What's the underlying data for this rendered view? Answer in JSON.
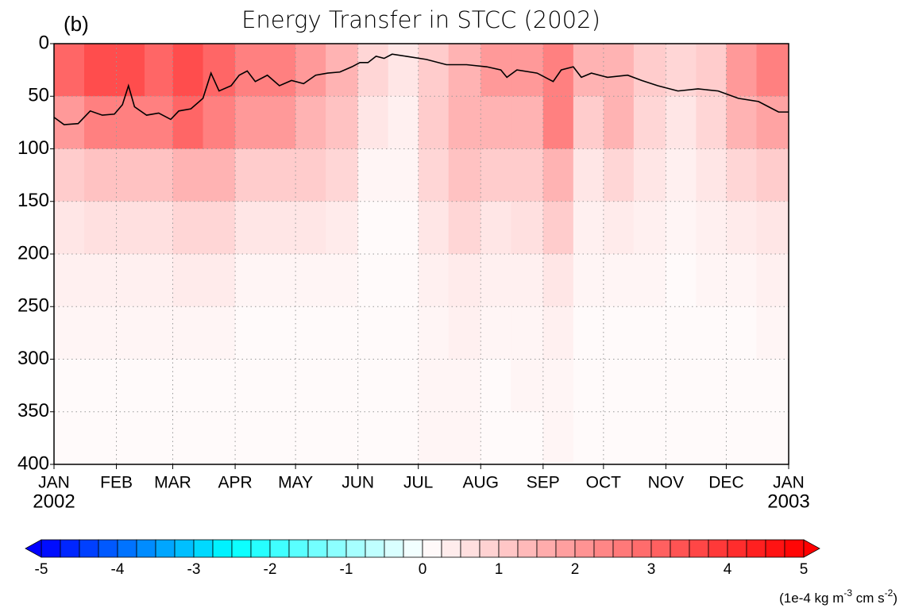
{
  "chart_data": {
    "type": "heatmap",
    "title": "Energy Transfer in STCC (2002)",
    "panel_label": "(b)",
    "xlim": [
      0,
      365
    ],
    "xticks": [
      {
        "value": 0,
        "label": "JAN"
      },
      {
        "value": 31,
        "label": "FEB"
      },
      {
        "value": 59,
        "label": "MAR"
      },
      {
        "value": 90,
        "label": "APR"
      },
      {
        "value": 120,
        "label": "MAY"
      },
      {
        "value": 151,
        "label": "JUN"
      },
      {
        "value": 181,
        "label": "JUL"
      },
      {
        "value": 212,
        "label": "AUG"
      },
      {
        "value": 243,
        "label": "SEP"
      },
      {
        "value": 273,
        "label": "OCT"
      },
      {
        "value": 304,
        "label": "NOV"
      },
      {
        "value": 334,
        "label": "DEC"
      },
      {
        "value": 365,
        "label": "JAN"
      }
    ],
    "year_labels": [
      {
        "value": 0,
        "label": "2002"
      },
      {
        "value": 365,
        "label": "2003"
      }
    ],
    "ylim": [
      0,
      400
    ],
    "yticks": [
      0,
      50,
      100,
      150,
      200,
      250,
      300,
      350,
      400
    ],
    "y_inverted": true,
    "grid": true,
    "time_bins": [
      0,
      15,
      31,
      45,
      59,
      74,
      90,
      105,
      120,
      135,
      151,
      166,
      181,
      196,
      212,
      227,
      243,
      258,
      273,
      288,
      304,
      319,
      334,
      349,
      365
    ],
    "depth_bins": [
      0,
      50,
      100,
      150,
      200,
      250,
      300,
      350,
      400
    ],
    "z": [
      [
        3,
        3.5,
        3.5,
        3,
        3.5,
        3,
        2.5,
        2.5,
        2,
        1.5,
        0.8,
        0.5,
        1,
        1.5,
        2,
        2,
        2.5,
        1.5,
        1.5,
        1,
        0.8,
        1,
        2,
        2.5
      ],
      [
        2,
        2.5,
        2.5,
        2.5,
        3,
        2.5,
        2,
        2,
        1.5,
        1.2,
        0.5,
        0.3,
        1,
        1.5,
        1.5,
        1.5,
        2.5,
        1,
        1.5,
        0.8,
        0.5,
        0.8,
        1.5,
        1.8
      ],
      [
        1,
        1.2,
        1.2,
        1.2,
        1.5,
        1.5,
        1,
        1,
        1,
        0.8,
        0.2,
        0.2,
        0.8,
        1.2,
        1,
        1,
        1.5,
        0.5,
        0.8,
        0.5,
        0.3,
        0.5,
        0.8,
        1
      ],
      [
        0.5,
        0.6,
        0.6,
        0.6,
        0.8,
        0.8,
        0.5,
        0.5,
        0.5,
        0.4,
        0.1,
        0.1,
        0.5,
        0.8,
        0.5,
        0.6,
        1,
        0.3,
        0.4,
        0.3,
        0.2,
        0.3,
        0.4,
        0.5
      ],
      [
        0.3,
        0.3,
        0.3,
        0.3,
        0.4,
        0.4,
        0.2,
        0.2,
        0.2,
        0.2,
        0.1,
        0.1,
        0.3,
        0.4,
        0.3,
        0.3,
        0.5,
        0.2,
        0.2,
        0.2,
        0.1,
        0.2,
        0.2,
        0.3
      ],
      [
        0.2,
        0.2,
        0.2,
        0.2,
        0.2,
        0.2,
        0.1,
        0.1,
        0.1,
        0.1,
        0.1,
        0.1,
        0.2,
        0.3,
        0.2,
        0.2,
        0.3,
        0.1,
        0.1,
        0.1,
        0.1,
        0.1,
        0.1,
        0.2
      ],
      [
        0.1,
        0.1,
        0.1,
        0.1,
        0.1,
        0.1,
        0.1,
        0.1,
        0.1,
        0.1,
        0.1,
        0.1,
        0.2,
        0.2,
        0.1,
        0.2,
        0.2,
        0.1,
        0.1,
        0.1,
        0.1,
        0.1,
        0.1,
        0.1
      ],
      [
        0.1,
        0.1,
        0.1,
        0.1,
        0.1,
        0.1,
        0.1,
        0.1,
        0.1,
        0.1,
        0.1,
        0.1,
        0.2,
        0.2,
        0.1,
        0.1,
        0.2,
        0.1,
        0.1,
        0.1,
        0.1,
        0.1,
        0.1,
        0.1
      ]
    ],
    "line": {
      "color": "#000000",
      "x": [
        0,
        5,
        12,
        18,
        24,
        30,
        34,
        37,
        40,
        46,
        52,
        58,
        62,
        68,
        74,
        78,
        82,
        88,
        92,
        96,
        100,
        106,
        112,
        118,
        124,
        130,
        136,
        142,
        148,
        152,
        156,
        160,
        164,
        168,
        175,
        185,
        195,
        205,
        215,
        222,
        225,
        230,
        240,
        248,
        252,
        258,
        262,
        267,
        275,
        285,
        292,
        300,
        310,
        320,
        330,
        340,
        350,
        355,
        360,
        365
      ],
      "values": [
        70,
        77,
        76,
        64,
        68,
        67,
        58,
        40,
        60,
        68,
        66,
        72,
        64,
        62,
        52,
        28,
        45,
        40,
        30,
        26,
        36,
        30,
        40,
        35,
        38,
        30,
        28,
        27,
        22,
        18,
        18,
        12,
        14,
        10,
        12,
        15,
        20,
        20,
        22,
        25,
        32,
        25,
        28,
        36,
        25,
        22,
        32,
        28,
        32,
        30,
        35,
        40,
        45,
        43,
        45,
        52,
        55,
        60,
        65,
        65
      ]
    },
    "colorbar": {
      "clim": [
        -5,
        5
      ],
      "ticks": [
        -5,
        -4,
        -3,
        -2,
        -1,
        0,
        1,
        2,
        3,
        4,
        5
      ],
      "label": [
        "(1e-4 kg m",
        "-3",
        " cm s",
        "-2",
        ")"
      ]
    }
  }
}
